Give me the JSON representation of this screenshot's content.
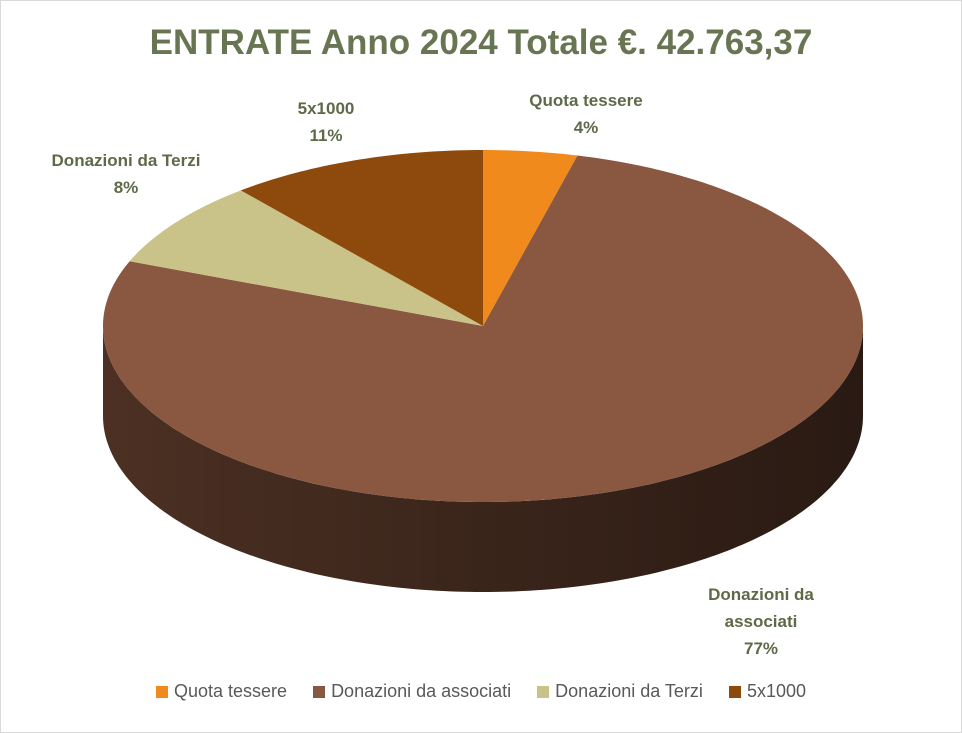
{
  "chart_data": {
    "type": "pie",
    "title": "ENTRATE Anno 2024 Totale €. 42.763,37",
    "categories": [
      "Quota tessere",
      "Donazioni da associati",
      "Donazioni da Terzi",
      "5x1000"
    ],
    "values": [
      4,
      77,
      8,
      11
    ],
    "value_labels": [
      "4%",
      "77%",
      "8%",
      "11%"
    ],
    "colors": [
      "#f08a1c",
      "#8a5740",
      "#c9c38a",
      "#8e4a0c"
    ],
    "legend": "bottom"
  }
}
